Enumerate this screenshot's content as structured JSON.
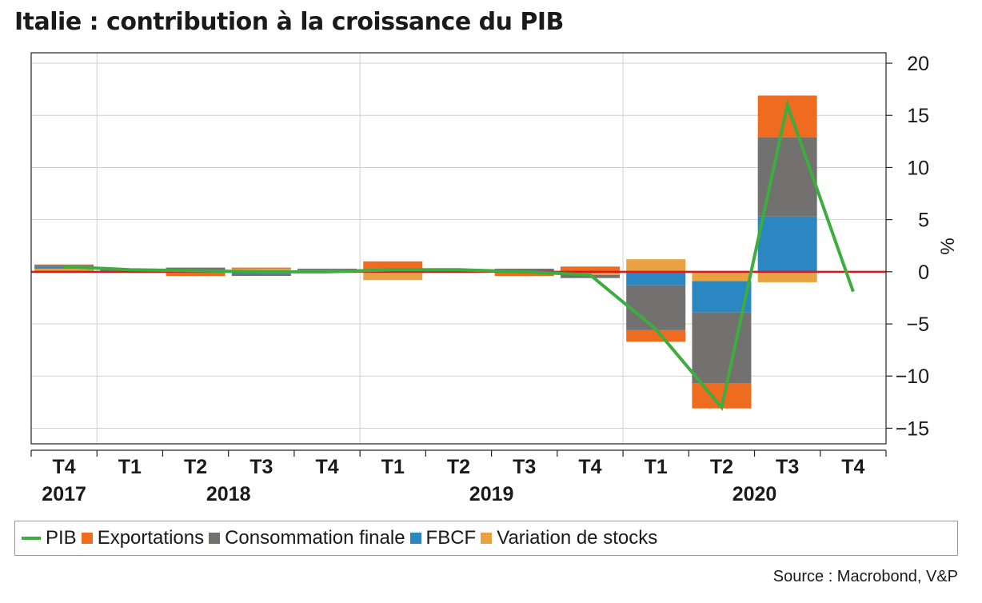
{
  "title": "Italie : contribution à la croissance du PIB",
  "source": "Source : Macrobond, V&P",
  "y_unit": "%",
  "colors": {
    "PIB": "#3cad3e",
    "Exportations": "#ee6b1f",
    "Consommation finale": "#737070",
    "FBCF": "#2a87c1",
    "Variation de stocks": "#e8a241",
    "zero_line": "#d9191f",
    "grid": "#d0d0d0"
  },
  "legend": [
    {
      "label": "PIB",
      "kind": "line"
    },
    {
      "label": "Exportations",
      "kind": "swatch"
    },
    {
      "label": "Consommation finale",
      "kind": "swatch"
    },
    {
      "label": "FBCF",
      "kind": "swatch"
    },
    {
      "label": "Variation de stocks",
      "kind": "swatch"
    }
  ],
  "chart_data": {
    "type": "bar",
    "stacked": true,
    "categories": [
      "T4",
      "T1",
      "T2",
      "T3",
      "T4",
      "T1",
      "T2",
      "T3",
      "T4",
      "T1",
      "T2",
      "T3",
      "T4"
    ],
    "year_labels": [
      {
        "label": "2017",
        "from": 0,
        "to": 0
      },
      {
        "label": "2018",
        "from": 1,
        "to": 4
      },
      {
        "label": "2019",
        "from": 5,
        "to": 8
      },
      {
        "label": "2020",
        "from": 9,
        "to": 12
      }
    ],
    "series": [
      {
        "name": "Variation de stocks",
        "values": [
          0.3,
          0.1,
          -0.1,
          0.3,
          0.1,
          -0.8,
          0.1,
          -0.1,
          -0.3,
          1.2,
          -0.9,
          -1.0,
          null
        ]
      },
      {
        "name": "FBCF",
        "values": [
          0.2,
          0.1,
          0.2,
          -0.2,
          0.1,
          0.0,
          0.1,
          0.1,
          0.0,
          -1.3,
          -3.0,
          5.3,
          null
        ]
      },
      {
        "name": "Consommation finale",
        "values": [
          0.1,
          0.0,
          0.2,
          -0.2,
          0.1,
          0.0,
          0.0,
          0.2,
          -0.3,
          -4.3,
          -6.8,
          7.6,
          null
        ]
      },
      {
        "name": "Exportations",
        "values": [
          0.1,
          -0.1,
          -0.3,
          0.1,
          -0.1,
          1.0,
          0.0,
          -0.3,
          0.5,
          -1.1,
          -2.4,
          4.0,
          null
        ]
      },
      {
        "name": "PIB",
        "type": "line",
        "values": [
          0.5,
          0.2,
          0.1,
          0.0,
          0.0,
          0.2,
          0.2,
          0.0,
          -0.3,
          -5.5,
          -13.0,
          16.0,
          -1.9
        ]
      }
    ],
    "ylim": [
      -16.5,
      21
    ],
    "yticks": [
      -15,
      -10,
      -5,
      0,
      5,
      10,
      15,
      20
    ],
    "ylabel": "%",
    "grid": true,
    "legend_position": "bottom"
  }
}
